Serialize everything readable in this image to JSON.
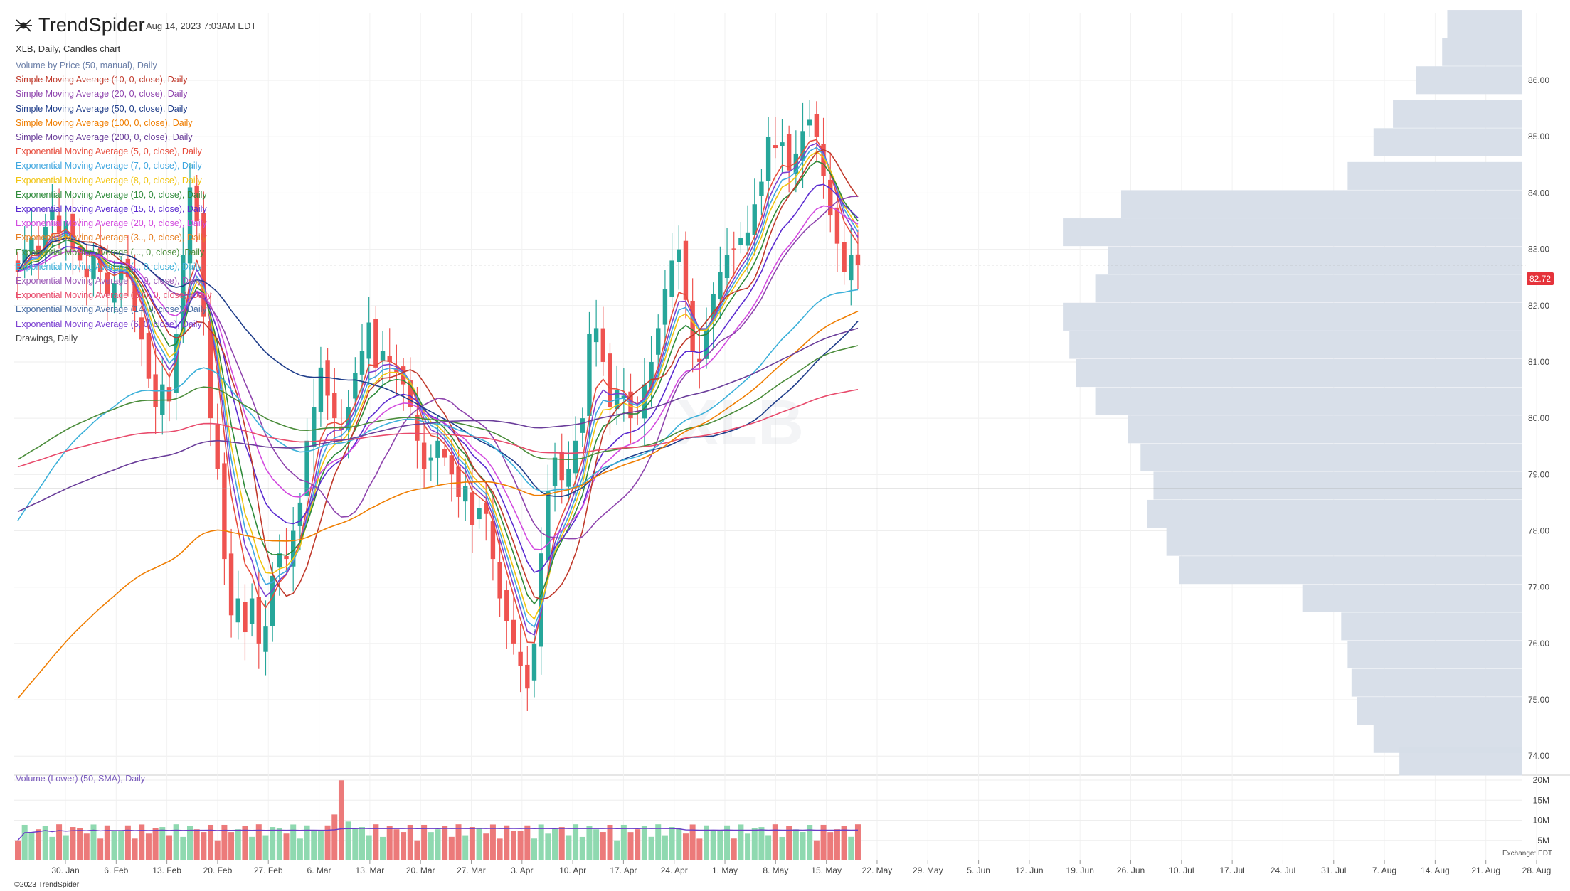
{
  "header": {
    "brand": "TrendSpider",
    "timestamp": "Aug 14, 2023 7:03AM EDT",
    "chart_title": "XLB, Daily, Candles chart"
  },
  "legend": [
    {
      "label": "Volume by Price (50, manual), Daily",
      "color": "#6b7fa8"
    },
    {
      "label": "Simple Moving Average (10, 0, close), Daily",
      "color": "#c0392b"
    },
    {
      "label": "Simple Moving Average (20, 0, close), Daily",
      "color": "#8e44ad"
    },
    {
      "label": "Simple Moving Average (50, 0, close), Daily",
      "color": "#1f3d8a"
    },
    {
      "label": "Simple Moving Average (100, 0, close), Daily",
      "color": "#ef7d00"
    },
    {
      "label": "Simple Moving Average (200, 0, close), Daily",
      "color": "#6a3d9a"
    },
    {
      "label": "Exponential Moving Average (5, 0, close), Daily",
      "color": "#e74c3c"
    },
    {
      "label": "Exponential Moving Average (7, 0, close), Daily",
      "color": "#3fa7e0"
    },
    {
      "label": "Exponential Moving Average (8, 0, close), Daily",
      "color": "#f1c40f"
    },
    {
      "label": "Exponential Moving Average (10, 0, close), Daily",
      "color": "#2e8b3a"
    },
    {
      "label": "Exponential Moving Average (15, 0, close), Daily",
      "color": "#5b2bd0"
    },
    {
      "label": "Exponential Moving Average (20, 0, close), Daily",
      "color": "#d24adf"
    },
    {
      "label": "Exponential Moving Average (3.., 0, close), Daily",
      "color": "#e67e22"
    },
    {
      "label": "Exponential Moving Average (..., 0, close), Daily",
      "color": "#4a8c3a"
    },
    {
      "label": "Exponential Moving Average (.., 0, close), Daily",
      "color": "#3bb0d9"
    },
    {
      "label": "Exponential Moving Average (.., 0, close), Daily",
      "color": "#9b59b6"
    },
    {
      "label": "Exponential Moving Average (200, 0, close), Daily",
      "color": "#e84a6b"
    },
    {
      "label": "Exponential Moving Average (14, 0, close), Daily",
      "color": "#4a6fa5"
    },
    {
      "label": "Exponential Moving Average (6, 0, close), Daily",
      "color": "#7b3fd1"
    },
    {
      "label": "Drawings, Daily",
      "color": "#444444"
    }
  ],
  "volume_label": "Volume (Lower) (50, SMA), Daily",
  "current_price": "82.72",
  "copyright": "©2023 TrendSpider",
  "exchange": "Exchange: EDT",
  "colors": {
    "up": "#26a69a",
    "down": "#ef5350",
    "vbp": "#d6dde8",
    "grid": "#eeeeee"
  },
  "chart_data": {
    "type": "candlestick",
    "title": "XLB, Daily, Candles chart",
    "symbol": "XLB",
    "ylim": [
      73.7,
      87.2
    ],
    "y_ticks": [
      "74.00",
      "75.00",
      "76.00",
      "77.00",
      "78.00",
      "79.00",
      "80.00",
      "81.00",
      "82.00",
      "83.00",
      "84.00",
      "85.00",
      "86.00"
    ],
    "x_ticks": [
      "30. Jan",
      "6. Feb",
      "13. Feb",
      "20. Feb",
      "27. Feb",
      "6. Mar",
      "13. Mar",
      "20. Mar",
      "27. Mar",
      "3. Apr",
      "10. Apr",
      "17. Apr",
      "24. Apr",
      "1. May",
      "8. May",
      "15. May",
      "22. May",
      "29. May",
      "5. Jun",
      "12. Jun",
      "19. Jun",
      "26. Jun",
      "10. Jul",
      "17. Jul",
      "24. Jul",
      "31. Jul",
      "7. Aug",
      "14. Aug",
      "21. Aug",
      "28. Aug"
    ],
    "volume_ticks": [
      "5M",
      "10M",
      "15M",
      "20M"
    ],
    "volume_max": 20,
    "closes": [
      82.6,
      83.0,
      83.2,
      82.9,
      83.4,
      83.7,
      83.3,
      83.5,
      83.0,
      82.8,
      82.5,
      82.9,
      82.6,
      82.2,
      82.4,
      82.7,
      82.5,
      81.9,
      81.4,
      80.7,
      80.2,
      80.6,
      80.3,
      81.5,
      82.9,
      84.1,
      83.5,
      81.8,
      80.0,
      79.1,
      77.5,
      76.5,
      76.8,
      76.2,
      76.8,
      76.0,
      76.3,
      77.2,
      77.6,
      77.5,
      78.0,
      78.5,
      79.6,
      80.2,
      80.9,
      80.4,
      80.0,
      79.8,
      80.2,
      80.8,
      81.2,
      81.7,
      80.9,
      81.2,
      81.0,
      80.8,
      80.6,
      80.2,
      79.6,
      79.1,
      79.3,
      79.6,
      79.3,
      79.0,
      78.6,
      78.8,
      78.1,
      78.4,
      78.3,
      77.5,
      76.8,
      76.4,
      76.0,
      75.6,
      75.2,
      76.0,
      77.6,
      78.7,
      79.3,
      78.9,
      79.1,
      79.6,
      80.0,
      81.5,
      81.6,
      81.0,
      80.2,
      80.5,
      80.4,
      80.0,
      80.1,
      80.6,
      81.0,
      81.6,
      82.3,
      82.8,
      83.0,
      82.1,
      81.2,
      81.0,
      81.6,
      82.2,
      82.6,
      82.9,
      83.0,
      83.2,
      83.3,
      83.8,
      84.2,
      85.0,
      84.8,
      84.9,
      84.4,
      84.7,
      85.1,
      85.3,
      85.0,
      84.3,
      83.6,
      83.1,
      82.6,
      82.9,
      82.72
    ],
    "volume_by_price": [
      {
        "price": 87.0,
        "volume": 0.58
      },
      {
        "price": 86.5,
        "volume": 0.62
      },
      {
        "price": 86.0,
        "volume": 0.82
      },
      {
        "price": 85.4,
        "volume": 1.0
      },
      {
        "price": 84.9,
        "volume": 1.15
      },
      {
        "price": 84.3,
        "volume": 1.35
      },
      {
        "price": 83.8,
        "volume": 3.1
      },
      {
        "price": 83.3,
        "volume": 3.55
      },
      {
        "price": 82.8,
        "volume": 3.2
      },
      {
        "price": 82.3,
        "volume": 3.3
      },
      {
        "price": 81.8,
        "volume": 3.55
      },
      {
        "price": 81.3,
        "volume": 3.5
      },
      {
        "price": 80.8,
        "volume": 3.45
      },
      {
        "price": 80.3,
        "volume": 3.3
      },
      {
        "price": 79.8,
        "volume": 3.05
      },
      {
        "price": 79.3,
        "volume": 2.95
      },
      {
        "price": 78.8,
        "volume": 2.85
      },
      {
        "price": 78.3,
        "volume": 2.9
      },
      {
        "price": 77.8,
        "volume": 2.75
      },
      {
        "price": 77.3,
        "volume": 2.65
      },
      {
        "price": 76.8,
        "volume": 1.7
      },
      {
        "price": 76.3,
        "volume": 1.4
      },
      {
        "price": 75.8,
        "volume": 1.35
      },
      {
        "price": 75.3,
        "volume": 1.32
      },
      {
        "price": 74.8,
        "volume": 1.28
      },
      {
        "price": 74.3,
        "volume": 1.15
      },
      {
        "price": 73.9,
        "volume": 0.95
      }
    ]
  }
}
